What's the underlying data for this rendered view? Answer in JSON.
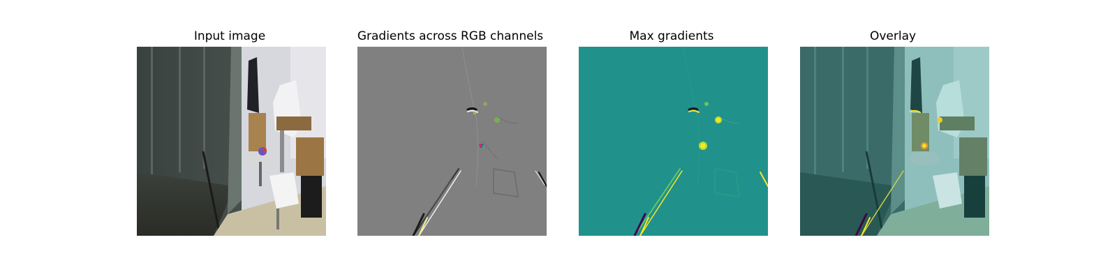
{
  "figure": {
    "panels": [
      {
        "title": "Input image",
        "content": "photo of an indoor room with a glass wall, chair, desk and hanging coat"
      },
      {
        "title": "Gradients across RGB channels",
        "content": "gray saliency map with faint edge strokes"
      },
      {
        "title": "Max gradients",
        "content": "teal saliency heatmap with yellow hot spots"
      },
      {
        "title": "Overlay",
        "content": "input image tinted with the max-gradient heatmap"
      }
    ]
  },
  "colors": {
    "background": "#ffffff",
    "gradients_gray": "#808080",
    "heatmap_teal": "#21918c",
    "hot_yellow": "#fde725"
  }
}
